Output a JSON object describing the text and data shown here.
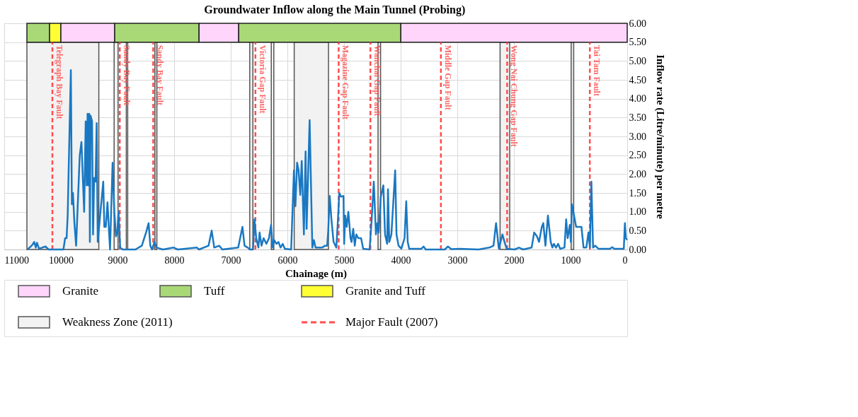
{
  "chart_data": {
    "type": "line",
    "title": "Groundwater Inflow along the Main Tunnel (Probing)",
    "xlabel": "Chainage (m)",
    "ylabel": "Inflow rate (Litre/minute) per metre",
    "xlim": [
      11000,
      0
    ],
    "xticks": [
      11000,
      10000,
      9000,
      8000,
      7000,
      6000,
      5000,
      4000,
      3000,
      2000,
      1000,
      0
    ],
    "ylim": [
      0,
      6
    ],
    "yticks": [
      {
        "value": 0,
        "label": "0.00"
      },
      {
        "value": 0.5,
        "label": "0.50"
      },
      {
        "value": 1,
        "label": "1.00"
      },
      {
        "value": 1.5,
        "label": "1.50"
      },
      {
        "value": 2,
        "label": "2.00"
      },
      {
        "value": 2.5,
        "label": "2.50"
      },
      {
        "value": 3,
        "label": "3.00"
      },
      {
        "value": 3.5,
        "label": "3.50"
      },
      {
        "value": 4,
        "label": "4.00"
      },
      {
        "value": 4.5,
        "label": "4.50"
      },
      {
        "value": 5,
        "label": "5.00"
      },
      {
        "value": 5.5,
        "label": "5.50"
      },
      {
        "value": 6,
        "label": "6.00"
      }
    ],
    "grid": true,
    "legend": "bottom",
    "line_style": "solid",
    "marker": "none",
    "x": [
      10591,
      10516,
      10471,
      10442,
      10423,
      10385,
      10273,
      10217,
      9955,
      9925,
      9899,
      9880,
      9824,
      9806,
      9787,
      9761,
      9731,
      9667,
      9637,
      9589,
      9562,
      9544,
      9529,
      9514,
      9499,
      9488,
      9476,
      9450,
      9432,
      9413,
      9387,
      9368,
      9349,
      9301,
      9252,
      9233,
      9207,
      9177,
      9151,
      9132,
      9087,
      9057,
      9027,
      9001,
      8983,
      8953,
      8908,
      8683,
      8571,
      8496,
      8451,
      8421,
      8391,
      8347,
      8309,
      8197,
      8010,
      7935,
      7598,
      7561,
      7393,
      7337,
      7292,
      7206,
      7149,
      6869,
      6794,
      6757,
      6700,
      6663,
      6607,
      6581,
      6551,
      6513,
      6491,
      6457,
      6420,
      6371,
      6326,
      6289,
      6259,
      6233,
      6195,
      6158,
      6121,
      6083,
      6046,
      5934,
      5885,
      5859,
      5829,
      5803,
      5773,
      5747,
      5709,
      5679,
      5661,
      5608,
      5560,
      5533,
      5503,
      5391,
      5335,
      5298,
      5279,
      5253,
      5223,
      5185,
      5137,
      5111,
      5084,
      5054,
      5010,
      4998,
      4980,
      4953,
      4924,
      4886,
      4867,
      4838,
      4811,
      4785,
      4748,
      4699,
      4662,
      4549,
      4512,
      4475,
      4437,
      4411,
      4389,
      4351,
      4306,
      4276,
      4239,
      4224,
      4202,
      4164,
      4097,
      4074,
      4037,
      3988,
      3932,
      3902,
      3876,
      3850,
      3633,
      3596,
      3558,
      3221,
      3165,
      3109,
      2959,
      2623,
      2436,
      2361,
      2316,
      2267,
      2204,
      2166,
      2129,
      1987,
      1912,
      1837,
      1688,
      1643,
      1594,
      1557,
      1508,
      1482,
      1444,
      1400,
      1351,
      1321,
      1295,
      1257,
      1220,
      1183,
      1108,
      1078,
      1052,
      1014,
      995,
      977,
      939,
      902,
      864,
      808,
      771,
      722,
      685,
      659,
      633,
      603,
      566,
      509,
      303,
      266,
      229,
      60,
      41,
      23,
      4
    ],
    "series": [
      {
        "color": "#1a78c2",
        "values": [
          0,
          0.1,
          0.2,
          0.05,
          0.18,
          0.02,
          0.08,
          0,
          0,
          0.3,
          0.3,
          0.9,
          4.76,
          1.2,
          1.5,
          0.7,
          0.1,
          2.5,
          2.85,
          1.0,
          3.4,
          1.7,
          3.6,
          1.7,
          3.6,
          0.2,
          3.55,
          3.4,
          0.4,
          1.9,
          1.8,
          3.35,
          0.2,
          1.0,
          1.8,
          0.6,
          0.6,
          1.25,
          0.5,
          0,
          2.3,
          1.0,
          0.35,
          0.5,
          1.0,
          0.05,
          0,
          0,
          0.1,
          0.45,
          0.7,
          0.1,
          0,
          0.2,
          0.05,
          0,
          0.05,
          0,
          0.05,
          0,
          0.1,
          0.5,
          0.05,
          0.1,
          0,
          0.05,
          0.6,
          0.1,
          0.05,
          0,
          0,
          0.8,
          0.3,
          0.05,
          0.45,
          0.1,
          0.3,
          0.15,
          0.3,
          0.65,
          0.05,
          0.25,
          0.15,
          0.2,
          0.05,
          0.15,
          0.02,
          0,
          2.1,
          1.15,
          2.3,
          2.1,
          1.45,
          2.35,
          0.4,
          2.6,
          0.55,
          3.43,
          0.05,
          0.25,
          0.05,
          0.05,
          0.1,
          0.1,
          0.5,
          1.42,
          0.8,
          0.2,
          0.05,
          0.7,
          1.5,
          1.4,
          1.42,
          0.15,
          0.9,
          0.6,
          1.0,
          0.3,
          0.2,
          0.55,
          0.1,
          0.4,
          0.3,
          0.3,
          0.02,
          0,
          0.8,
          1.8,
          0.4,
          0.7,
          0.45,
          1.4,
          1.7,
          0.4,
          0.15,
          1.6,
          0.2,
          0.4,
          2.1,
          0.4,
          0.1,
          0.02,
          0.3,
          1.28,
          0.2,
          0.02,
          0.02,
          0.08,
          0,
          0,
          0.08,
          0.01,
          0.02,
          0,
          0.05,
          0.1,
          0.7,
          0.02,
          0.4,
          0.2,
          0.02,
          0,
          0.05,
          0,
          0.05,
          0.45,
          0.35,
          0.2,
          0.6,
          0.7,
          0.1,
          0.9,
          0.2,
          0.05,
          0.15,
          0.05,
          0.15,
          0.02,
          0.05,
          0.8,
          0.3,
          0.65,
          0.2,
          1.2,
          0.9,
          0.6,
          0.6,
          0.6,
          0.05,
          0.05,
          0.45,
          0.05,
          1.8,
          0.05,
          0.1,
          0.02,
          0.02,
          0.06,
          0.02,
          0.02,
          0.7,
          0.3,
          0.25
        ]
      }
    ],
    "bands": [
      {
        "axis": "x",
        "from": 4000,
        "to": 0,
        "label": "Granite",
        "color": "#ffd5fb"
      },
      {
        "axis": "x",
        "from": 10600,
        "to": 10200,
        "label": "Tuff",
        "color": "#a9d977"
      },
      {
        "axis": "x",
        "from": 10200,
        "to": 10000,
        "label": "Granite and Tuff",
        "color": "#ffff33"
      },
      {
        "axis": "x",
        "from": 10000,
        "to": 9050,
        "color": "#ffd5fb"
      },
      {
        "axis": "x",
        "from": 9050,
        "to": 7560,
        "color": "#a9d977"
      },
      {
        "axis": "x",
        "from": 7560,
        "to": 6860,
        "color": "#ffd5fb"
      },
      {
        "axis": "x",
        "from": 6860,
        "to": 4000,
        "color": "#a9d977"
      },
      {
        "axis": "x",
        "from": 10600,
        "to": 9330,
        "label": "Weakness Zone (2011)",
        "color": "#f2f2f2"
      },
      {
        "axis": "x",
        "from": 9060,
        "to": 8990,
        "color": "#f2f2f2"
      },
      {
        "axis": "x",
        "from": 8845,
        "to": 8820,
        "color": "#f2f2f2"
      },
      {
        "axis": "x",
        "from": 8340,
        "to": 8305,
        "color": "#f2f2f2"
      },
      {
        "axis": "x",
        "from": 6665,
        "to": 6610,
        "color": "#f2f2f2"
      },
      {
        "axis": "x",
        "from": 6285,
        "to": 6240,
        "color": "#f2f2f2"
      },
      {
        "axis": "x",
        "from": 5880,
        "to": 5275,
        "color": "#f2f2f2"
      },
      {
        "axis": "x",
        "from": 4400,
        "to": 4355,
        "color": "#f2f2f2"
      },
      {
        "axis": "x",
        "from": 2245,
        "to": 2075,
        "color": "#f2f2f2"
      },
      {
        "axis": "x",
        "from": 990,
        "to": 945,
        "color": "#f2f2f2"
      }
    ],
    "ref_lines": [
      {
        "axis": "x",
        "value": 10150,
        "label": "Telegraph Bay Fault",
        "color": "#ff4d4d",
        "line_style": "dashed"
      },
      {
        "axis": "x",
        "value": 8960,
        "label": "Sandy Bay Fault",
        "color": "#ff4d4d",
        "line_style": "dashed"
      },
      {
        "axis": "x",
        "value": 8370,
        "label": "Sandy Bay Fault",
        "color": "#ff4d4d",
        "line_style": "dashed"
      },
      {
        "axis": "x",
        "value": 6565,
        "label": "Victoria Gap Fault",
        "color": "#ff4d4d",
        "line_style": "dashed"
      },
      {
        "axis": "x",
        "value": 5095,
        "label": "Magazine Gap Fault",
        "color": "#ff4d4d",
        "line_style": "dashed"
      },
      {
        "axis": "x",
        "value": 4535,
        "label": "Wanchai Gap Fault",
        "color": "#ff4d4d",
        "line_style": "dashed"
      },
      {
        "axis": "x",
        "value": 3290,
        "label": "Middle Gap Fault",
        "color": "#ff4d4d",
        "line_style": "dashed"
      },
      {
        "axis": "x",
        "value": 2120,
        "label": "Wong Nai Chung Gap Fault",
        "color": "#ff4d4d",
        "line_style": "dashed"
      },
      {
        "axis": "x",
        "value": 660,
        "label": "Tai Tam Fault",
        "color": "#ff4d4d",
        "line_style": "dashed"
      }
    ],
    "annotations": [
      "Major Fault (2007)"
    ]
  }
}
